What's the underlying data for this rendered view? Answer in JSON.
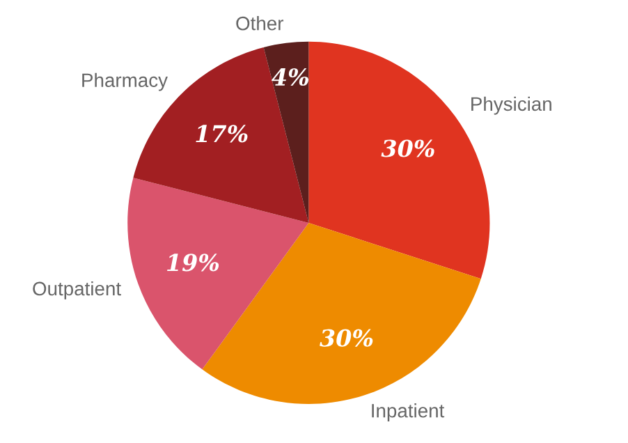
{
  "chart_data": {
    "type": "pie",
    "categories": [
      "Physician",
      "Inpatient",
      "Outpatient",
      "Pharmacy",
      "Other"
    ],
    "values": [
      30,
      30,
      19,
      17,
      4
    ],
    "value_labels": [
      "30%",
      "30%",
      "19%",
      "17%",
      "4%"
    ],
    "colors": [
      "#e03420",
      "#ee8b00",
      "#da546c",
      "#a21f22",
      "#5c1f1d"
    ],
    "legend": false
  }
}
